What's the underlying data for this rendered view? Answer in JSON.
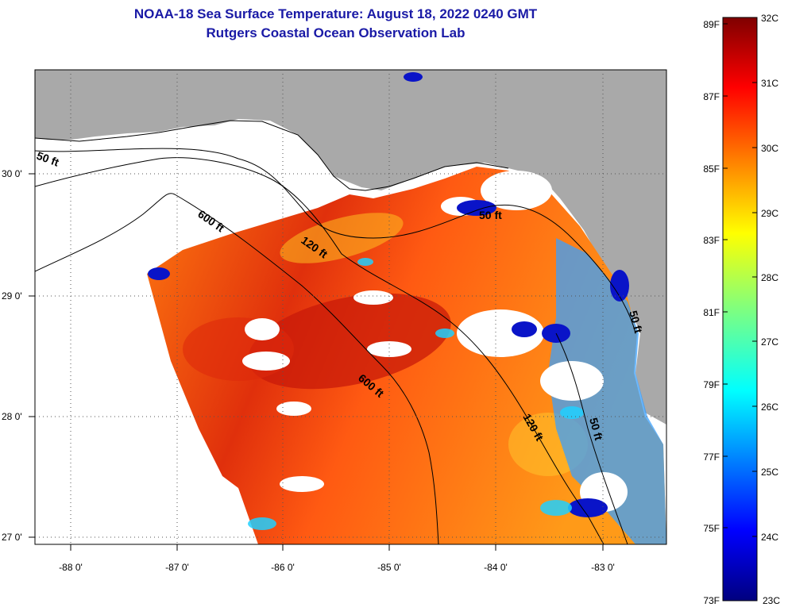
{
  "header": {
    "title": "NOAA-18 Sea Surface Temperature:  August 18, 2022 0240 GMT",
    "subtitle": "Rutgers Coastal Ocean Observation Lab"
  },
  "axes": {
    "lon_labels": [
      "-88 0'",
      "-87 0'",
      "-86 0'",
      "-85 0'",
      "-84 0'",
      "-83 0'"
    ],
    "lat_labels": [
      "30 0'",
      "29 0'",
      "28 0'",
      "27 0'"
    ]
  },
  "contours": {
    "labels": [
      "50 ft",
      "600 ft",
      "120 ft",
      "600 ft",
      "50 ft",
      "120 ft",
      "50 ft",
      "50 ft"
    ]
  },
  "colorbar": {
    "fahrenheit": [
      "89F",
      "87F",
      "85F",
      "83F",
      "81F",
      "79F",
      "77F",
      "75F",
      "73F"
    ],
    "celsius": [
      "32C",
      "31C",
      "30C",
      "29C",
      "28C",
      "27C",
      "26C",
      "25C",
      "24C",
      "23C"
    ]
  },
  "colors": {
    "title": "#1a1aa6",
    "land": "#a9a9a9",
    "cloud_nodata": "#ffffff"
  }
}
